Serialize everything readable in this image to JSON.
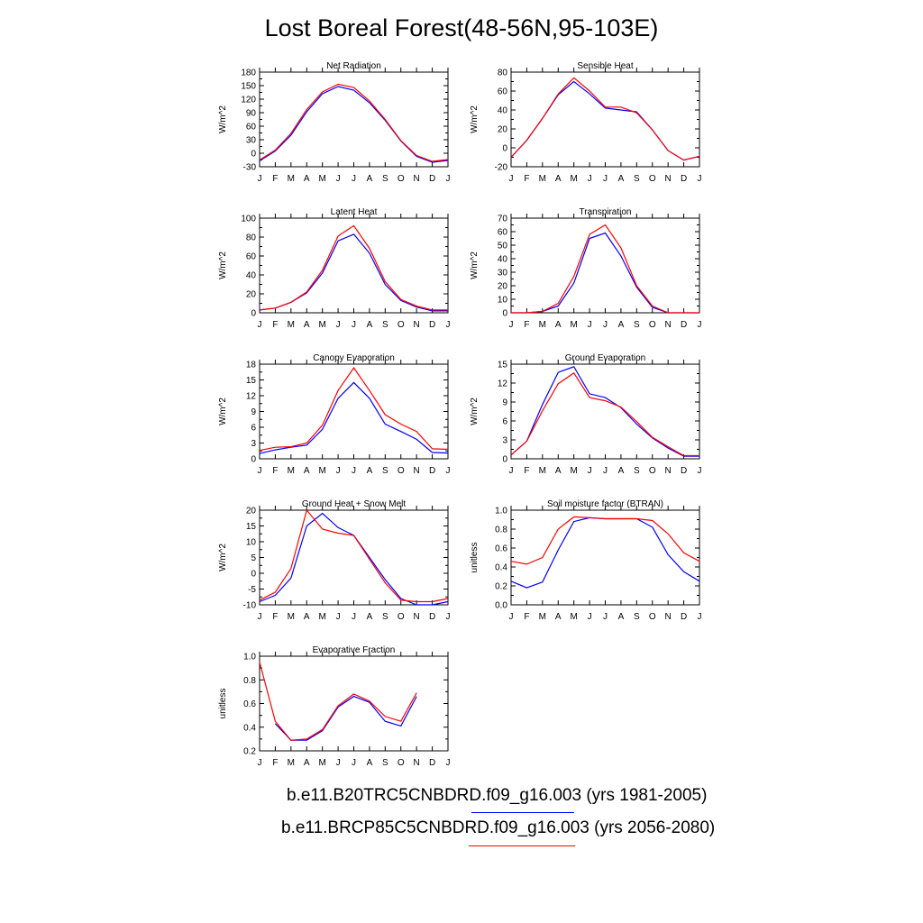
{
  "title": "Lost Boreal Forest(48-56N,95-103E)",
  "legend": [
    {
      "label": "b.e11.B20TRC5CNBDRD.f09_g16.003 (yrs 1981-2005)",
      "color": "#0000ff"
    },
    {
      "label": "b.e11.BRCP85C5CNBDRD.f09_g16.003 (yrs 2056-2080)",
      "color": "#ff0000"
    }
  ],
  "colors": {
    "series_1": "#0000ff",
    "series_2": "#ff0000"
  },
  "chart_data": [
    {
      "type": "line",
      "title": "Net Radiation",
      "ylabel": "W/m^2",
      "x": [
        "J",
        "F",
        "M",
        "A",
        "M",
        "J",
        "J",
        "A",
        "S",
        "O",
        "N",
        "D",
        "J"
      ],
      "ylim": [
        -30,
        180
      ],
      "yticks": [
        "-30",
        "0",
        "30",
        "60",
        "90",
        "120",
        "150",
        "180"
      ],
      "series": [
        {
          "values": [
            -17,
            5,
            40,
            92,
            132,
            148,
            140,
            112,
            73,
            27,
            -7,
            -20,
            -16
          ]
        },
        {
          "values": [
            -15,
            7,
            44,
            97,
            136,
            153,
            146,
            116,
            75,
            28,
            -5,
            -18,
            -14
          ]
        }
      ]
    },
    {
      "type": "line",
      "title": "Sensible Heat",
      "ylabel": "W/m^2",
      "x": [
        "J",
        "F",
        "M",
        "A",
        "M",
        "J",
        "J",
        "A",
        "S",
        "O",
        "N",
        "D",
        "J"
      ],
      "ylim": [
        -20,
        80
      ],
      "yticks": [
        "-20",
        "0",
        "20",
        "40",
        "60",
        "80"
      ],
      "series": [
        {
          "values": [
            -10,
            8,
            31,
            56,
            70,
            57,
            42,
            40,
            38,
            19,
            -3,
            -13,
            -9
          ]
        },
        {
          "values": [
            -10,
            8,
            31,
            57,
            74,
            60,
            43,
            43,
            37,
            19,
            -3,
            -13,
            -9
          ]
        }
      ]
    },
    {
      "type": "line",
      "title": "Latent Heat",
      "ylabel": "W/m^2",
      "x": [
        "J",
        "F",
        "M",
        "A",
        "M",
        "J",
        "J",
        "A",
        "S",
        "O",
        "N",
        "D",
        "J"
      ],
      "ylim": [
        0,
        100
      ],
      "yticks": [
        "0",
        "20",
        "40",
        "60",
        "80",
        "100"
      ],
      "series": [
        {
          "values": [
            3,
            5,
            11,
            21,
            42,
            76,
            83,
            63,
            30,
            13,
            6,
            2,
            2
          ]
        },
        {
          "values": [
            3,
            5,
            11,
            22,
            45,
            81,
            92,
            68,
            33,
            14,
            7,
            3,
            3
          ]
        }
      ]
    },
    {
      "type": "line",
      "title": "Transpiration",
      "ylabel": "W/m^2",
      "x": [
        "J",
        "F",
        "M",
        "A",
        "M",
        "J",
        "J",
        "A",
        "S",
        "O",
        "N",
        "D",
        "J"
      ],
      "ylim": [
        0,
        70
      ],
      "yticks": [
        "0",
        "10",
        "20",
        "30",
        "40",
        "50",
        "60",
        "70"
      ],
      "series": [
        {
          "values": [
            0,
            0,
            1,
            5,
            22,
            55,
            59,
            42,
            19,
            4,
            0,
            0,
            0
          ]
        },
        {
          "values": [
            0,
            0,
            1,
            7,
            27,
            58,
            65,
            48,
            20,
            5,
            0,
            0,
            0
          ]
        }
      ]
    },
    {
      "type": "line",
      "title": "Canopy Evaporation",
      "ylabel": "W/m^2",
      "x": [
        "J",
        "F",
        "M",
        "A",
        "M",
        "J",
        "J",
        "A",
        "S",
        "O",
        "N",
        "D",
        "J"
      ],
      "ylim": [
        0,
        18
      ],
      "yticks": [
        "0",
        "3",
        "6",
        "9",
        "12",
        "15",
        "18"
      ],
      "series": [
        {
          "values": [
            1.0,
            1.7,
            2.2,
            2.6,
            5.6,
            11.5,
            14.5,
            11.5,
            6.6,
            5.2,
            3.7,
            1.2,
            1.1
          ]
        },
        {
          "values": [
            1.6,
            2.2,
            2.3,
            3.0,
            6.4,
            13.0,
            17.3,
            13.0,
            8.4,
            6.6,
            5.2,
            1.9,
            1.8
          ]
        }
      ]
    },
    {
      "type": "line",
      "title": "Ground Evaporation",
      "ylabel": "W/m^2",
      "x": [
        "J",
        "F",
        "M",
        "A",
        "M",
        "J",
        "J",
        "A",
        "S",
        "O",
        "N",
        "D",
        "J"
      ],
      "ylim": [
        0,
        15
      ],
      "yticks": [
        "0",
        "3",
        "6",
        "9",
        "12",
        "15"
      ],
      "series": [
        {
          "values": [
            0.6,
            2.8,
            8.6,
            13.7,
            14.6,
            10.3,
            9.7,
            8.1,
            5.5,
            3.3,
            1.7,
            0.4,
            0.4
          ]
        },
        {
          "values": [
            0.6,
            2.8,
            7.6,
            11.9,
            13.6,
            9.7,
            9.2,
            8.2,
            5.9,
            3.4,
            1.9,
            0.5,
            0.5
          ]
        }
      ]
    },
    {
      "type": "line",
      "title": "Ground Heat + Snow Melt",
      "ylabel": "W/m^2",
      "x": [
        "J",
        "F",
        "M",
        "A",
        "M",
        "J",
        "J",
        "A",
        "S",
        "O",
        "N",
        "D",
        "J"
      ],
      "ylim": [
        -10,
        20
      ],
      "yticks": [
        "-10",
        "-5",
        "0",
        "5",
        "10",
        "15",
        "20"
      ],
      "series": [
        {
          "values": [
            -9,
            -7,
            -1.5,
            15,
            19,
            14.5,
            12,
            5,
            -2,
            -8,
            -10,
            -10,
            -9
          ]
        },
        {
          "values": [
            -8.5,
            -6,
            1.5,
            20,
            14,
            12.7,
            12,
            4.5,
            -3,
            -8.5,
            -9,
            -9,
            -8
          ]
        }
      ]
    },
    {
      "type": "line",
      "title": "Soil moisture factor (BTRAN)",
      "ylabel": "unitless",
      "x": [
        "J",
        "F",
        "M",
        "A",
        "M",
        "J",
        "J",
        "A",
        "S",
        "O",
        "N",
        "D",
        "J"
      ],
      "ylim": [
        0.0,
        1.0
      ],
      "yticks": [
        "0.0",
        "0.2",
        "0.4",
        "0.6",
        "0.8",
        "1.0"
      ],
      "series": [
        {
          "values": [
            0.25,
            0.18,
            0.24,
            0.58,
            0.88,
            0.92,
            0.91,
            0.91,
            0.91,
            0.82,
            0.53,
            0.35,
            0.25
          ]
        },
        {
          "values": [
            0.46,
            0.43,
            0.5,
            0.8,
            0.93,
            0.92,
            0.91,
            0.91,
            0.91,
            0.89,
            0.75,
            0.55,
            0.46
          ]
        }
      ]
    },
    {
      "type": "line",
      "title": "Evaporative Fraction",
      "ylabel": "unitless",
      "x": [
        "J",
        "F",
        "M",
        "A",
        "M",
        "J",
        "J",
        "A",
        "S",
        "O",
        "N",
        "D",
        "J"
      ],
      "ylim": [
        0.2,
        1.0
      ],
      "yticks": [
        "0.2",
        "0.4",
        "0.6",
        "0.8",
        "1.0"
      ],
      "series": [
        {
          "values": [
            null,
            0.43,
            0.29,
            0.29,
            0.37,
            0.57,
            0.66,
            0.61,
            0.45,
            0.41,
            0.66,
            null,
            null
          ]
        },
        {
          "values": [
            0.95,
            0.45,
            0.29,
            0.3,
            0.38,
            0.58,
            0.68,
            0.62,
            0.49,
            0.45,
            0.69,
            null,
            null
          ]
        }
      ]
    }
  ]
}
